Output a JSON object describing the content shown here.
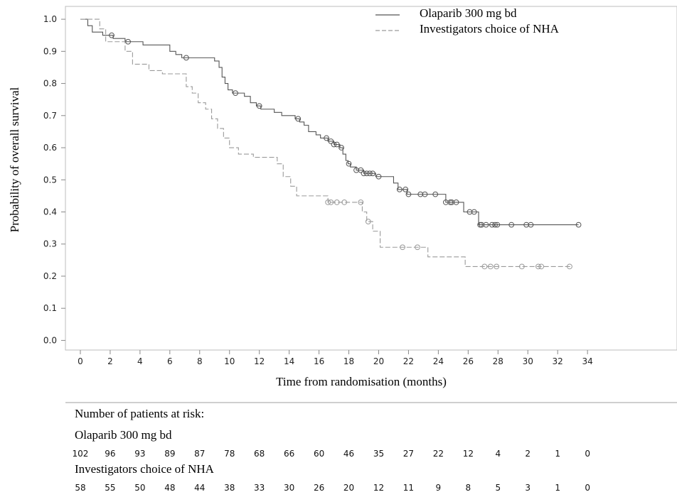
{
  "chart_data": {
    "type": "line",
    "subtype": "kaplan-meier",
    "title": "",
    "xlabel": "Time from randomisation (months)",
    "ylabel": "Probability of overall survival",
    "xlim": [
      -1,
      40
    ],
    "ylim": [
      -0.03,
      1.04
    ],
    "xticks": [
      "0",
      "2",
      "4",
      "6",
      "8",
      "10",
      "12",
      "14",
      "16",
      "18",
      "20",
      "22",
      "24",
      "26",
      "28",
      "30",
      "32",
      "34"
    ],
    "yticks": [
      "0.0",
      "0.1",
      "0.2",
      "0.3",
      "0.4",
      "0.5",
      "0.6",
      "0.7",
      "0.8",
      "0.9",
      "1.0"
    ],
    "legend_position": "top-right",
    "grid": false,
    "series": [
      {
        "name": "Olaparib 300 mg bd",
        "color": "#555555",
        "style": "solid",
        "steps": [
          [
            0,
            1.0
          ],
          [
            0.5,
            0.98
          ],
          [
            0.8,
            0.96
          ],
          [
            1.5,
            0.95
          ],
          [
            2.2,
            0.94
          ],
          [
            3.0,
            0.93
          ],
          [
            4.2,
            0.92
          ],
          [
            6.0,
            0.9
          ],
          [
            6.4,
            0.89
          ],
          [
            6.8,
            0.88
          ],
          [
            9.0,
            0.87
          ],
          [
            9.3,
            0.85
          ],
          [
            9.5,
            0.82
          ],
          [
            9.7,
            0.8
          ],
          [
            9.9,
            0.78
          ],
          [
            10.2,
            0.77
          ],
          [
            11.0,
            0.76
          ],
          [
            11.4,
            0.74
          ],
          [
            11.8,
            0.73
          ],
          [
            12.1,
            0.72
          ],
          [
            13.0,
            0.71
          ],
          [
            13.5,
            0.7
          ],
          [
            14.4,
            0.69
          ],
          [
            14.7,
            0.68
          ],
          [
            15.0,
            0.67
          ],
          [
            15.3,
            0.65
          ],
          [
            15.8,
            0.64
          ],
          [
            16.1,
            0.63
          ],
          [
            16.6,
            0.62
          ],
          [
            17.0,
            0.61
          ],
          [
            17.4,
            0.6
          ],
          [
            17.6,
            0.58
          ],
          [
            17.8,
            0.56
          ],
          [
            17.95,
            0.55
          ],
          [
            18.1,
            0.54
          ],
          [
            18.5,
            0.53
          ],
          [
            19.0,
            0.52
          ],
          [
            19.8,
            0.51
          ],
          [
            21.0,
            0.49
          ],
          [
            21.3,
            0.47
          ],
          [
            21.9,
            0.455
          ],
          [
            24.5,
            0.43
          ],
          [
            25.7,
            0.4
          ],
          [
            26.7,
            0.36
          ]
        ],
        "end": 33.4,
        "censor_times": [
          2.1,
          3.2,
          7.1,
          10.4,
          12.0,
          14.6,
          16.5,
          16.8,
          17.0,
          17.2,
          17.5,
          18.0,
          18.5,
          18.8,
          19.0,
          19.2,
          19.4,
          19.6,
          20.0,
          21.4,
          21.8,
          22.0,
          22.8,
          23.1,
          23.8,
          24.5,
          24.8,
          24.9,
          25.2,
          26.1,
          26.4,
          26.8,
          26.9,
          27.2,
          27.6,
          27.8,
          27.95,
          28.9,
          29.9,
          30.2,
          33.4
        ]
      },
      {
        "name": "Investigators choice of NHA",
        "color": "#9a9a9a",
        "style": "dashed",
        "steps": [
          [
            0,
            1.0
          ],
          [
            1.3,
            0.97
          ],
          [
            1.7,
            0.93
          ],
          [
            3.0,
            0.9
          ],
          [
            3.5,
            0.86
          ],
          [
            4.6,
            0.84
          ],
          [
            5.5,
            0.83
          ],
          [
            7.1,
            0.79
          ],
          [
            7.5,
            0.77
          ],
          [
            7.9,
            0.74
          ],
          [
            8.4,
            0.72
          ],
          [
            8.8,
            0.69
          ],
          [
            9.2,
            0.66
          ],
          [
            9.6,
            0.63
          ],
          [
            10.0,
            0.6
          ],
          [
            10.6,
            0.58
          ],
          [
            11.6,
            0.57
          ],
          [
            13.2,
            0.55
          ],
          [
            13.6,
            0.51
          ],
          [
            14.1,
            0.48
          ],
          [
            14.5,
            0.45
          ],
          [
            16.6,
            0.43
          ],
          [
            17.4,
            0.43
          ],
          [
            18.9,
            0.4
          ],
          [
            19.2,
            0.37
          ],
          [
            19.6,
            0.34
          ],
          [
            20.1,
            0.29
          ],
          [
            23.3,
            0.26
          ],
          [
            25.8,
            0.23
          ]
        ],
        "end": 32.9,
        "censor_times": [
          16.6,
          16.8,
          17.2,
          17.7,
          18.8,
          19.3,
          21.6,
          22.6,
          27.1,
          27.5,
          27.9,
          29.6,
          30.7,
          30.9,
          32.8
        ]
      }
    ]
  },
  "risk_table": {
    "heading": "Number of patients at risk:",
    "groups": [
      {
        "name": "Olaparib 300 mg bd",
        "values": [
          "102",
          "96",
          "93",
          "89",
          "87",
          "78",
          "68",
          "66",
          "60",
          "46",
          "35",
          "27",
          "22",
          "12",
          "4",
          "2",
          "1",
          "0"
        ]
      },
      {
        "name": "Investigators choice of NHA",
        "values": [
          "58",
          "55",
          "50",
          "48",
          "44",
          "38",
          "33",
          "30",
          "26",
          "20",
          "12",
          "11",
          "9",
          "8",
          "5",
          "3",
          "1",
          "0"
        ]
      }
    ]
  }
}
